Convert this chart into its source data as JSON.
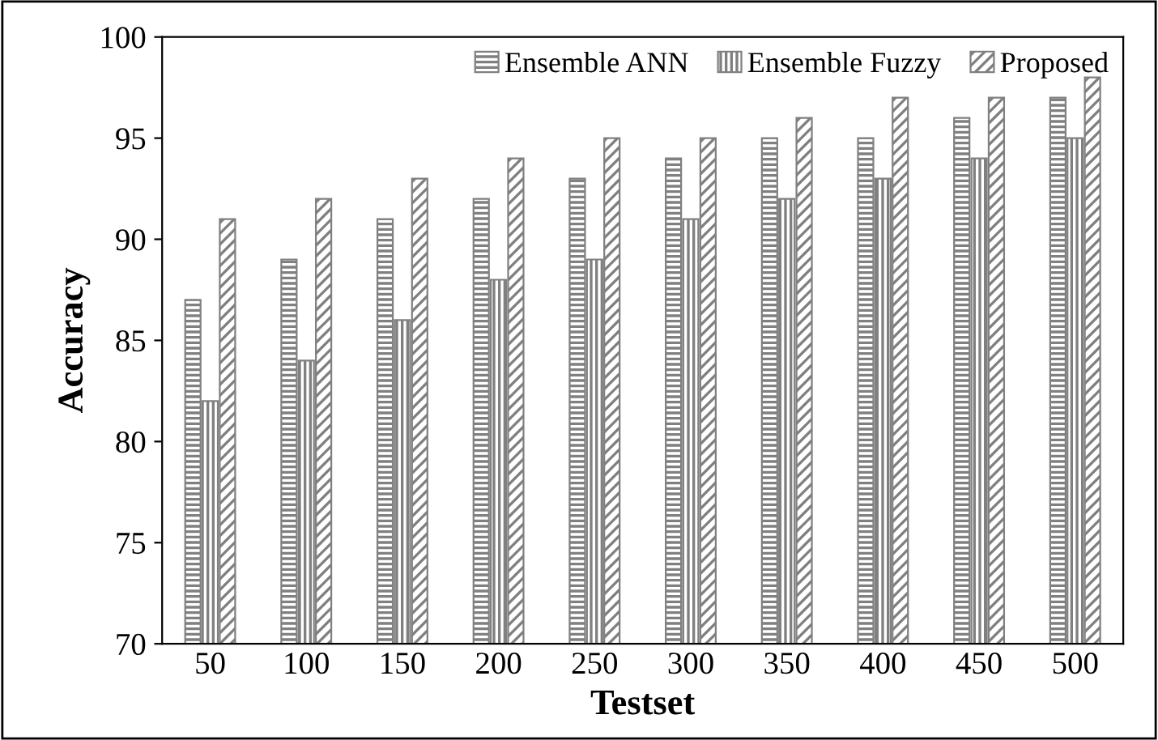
{
  "chart_data": {
    "type": "bar",
    "xlabel": "Testset",
    "ylabel": "Accuracy",
    "categories": [
      "50",
      "100",
      "150",
      "200",
      "250",
      "300",
      "350",
      "400",
      "450",
      "500"
    ],
    "series": [
      {
        "name": "Ensemble ANN",
        "color": "#808080",
        "values": [
          87,
          89,
          91,
          92,
          93,
          94,
          95,
          95,
          96,
          97
        ]
      },
      {
        "name": "Ensemble Fuzzy",
        "color": "#808080",
        "values": [
          82,
          84,
          86,
          88,
          89,
          91,
          92,
          93,
          94,
          95
        ]
      },
      {
        "name": "Proposed",
        "color": "#808080",
        "values": [
          91,
          92,
          93,
          94,
          95,
          95,
          96,
          97,
          97,
          98
        ]
      }
    ],
    "ylim": [
      70,
      100
    ],
    "yticks": [
      70,
      75,
      80,
      85,
      90,
      95,
      100
    ],
    "grid": false,
    "legend": "top right"
  }
}
